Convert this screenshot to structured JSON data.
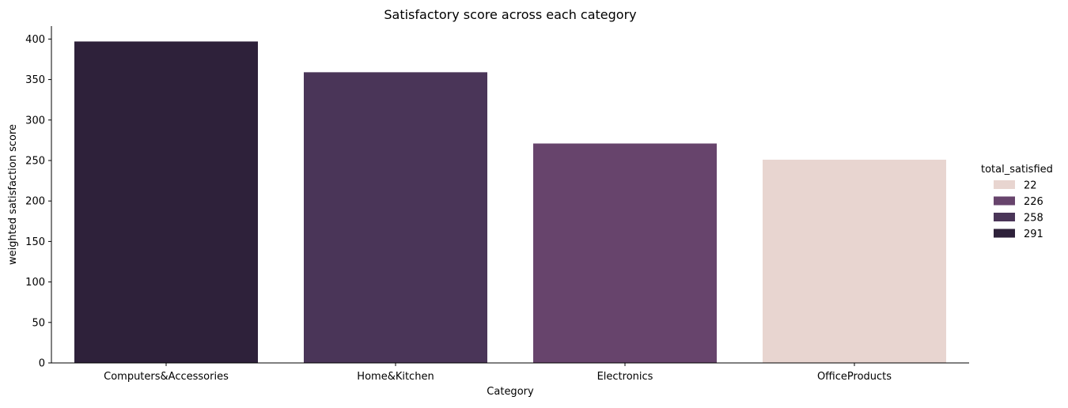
{
  "chart_data": {
    "type": "bar",
    "title": "Satisfactory score across each category",
    "xlabel": "Category",
    "ylabel": "weighted satisfaction score",
    "categories": [
      "Computers&Accessories",
      "Home&Kitchen",
      "Electronics",
      "OfficeProducts"
    ],
    "values": [
      397,
      359,
      271,
      251
    ],
    "bar_hue_values": [
      291,
      258,
      226,
      22
    ],
    "ylim": [
      0,
      416
    ],
    "yticks": [
      0,
      50,
      100,
      150,
      200,
      250,
      300,
      350,
      400
    ],
    "grid": false,
    "legend": {
      "title": "total_satisfied",
      "placement": "right",
      "entries": [
        {
          "label": "22",
          "color": "#e8d5d0"
        },
        {
          "label": "226",
          "color": "#67446c"
        },
        {
          "label": "258",
          "color": "#4a3558"
        },
        {
          "label": "291",
          "color": "#2e213a"
        }
      ]
    },
    "hue_colors": {
      "22": "#e8d5d0",
      "226": "#67446c",
      "258": "#4a3558",
      "291": "#2e213a"
    }
  }
}
